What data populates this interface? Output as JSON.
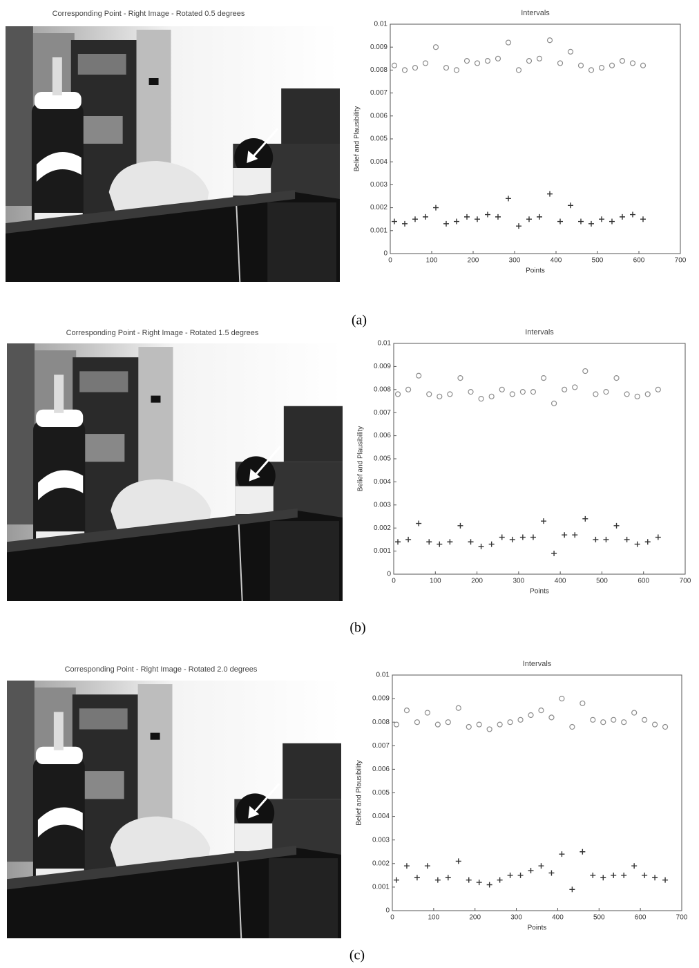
{
  "panels": [
    {
      "image_title": "Corresponding Point     - Right Image - Rotated 0.5 degrees",
      "caption": "(a)"
    },
    {
      "image_title": "Corresponding Point     - Right Image - Rotated 1.5 degrees",
      "caption": "(b)"
    },
    {
      "image_title": "Corresponding Point     - Right Image - Rotated 2.0 degrees",
      "caption": "(c)"
    }
  ],
  "chart_data": [
    {
      "type": "scatter",
      "title": "Intervals",
      "x_label": "Points",
      "y_label": "Belief and Plausibility",
      "xlim": [
        0,
        700
      ],
      "xticks": [
        0,
        100,
        200,
        300,
        400,
        500,
        600,
        700
      ],
      "ylim": [
        0,
        0.01
      ],
      "yticks": [
        0,
        0.001,
        0.002,
        0.003,
        0.004,
        0.005,
        0.006,
        0.007,
        0.008,
        0.009,
        0.01
      ],
      "series": [
        {
          "marker": "circle",
          "color": "#8c8c8c",
          "x": [
            10,
            35,
            60,
            85,
            110,
            135,
            160,
            185,
            210,
            235,
            260,
            285,
            310,
            335,
            360,
            385,
            410,
            435,
            460,
            485,
            510,
            535,
            560,
            585,
            610
          ],
          "values": [
            0.0082,
            0.008,
            0.0081,
            0.0083,
            0.009,
            0.0081,
            0.008,
            0.0084,
            0.0083,
            0.0084,
            0.0085,
            0.0092,
            0.008,
            0.0084,
            0.0085,
            0.0093,
            0.0083,
            0.0088,
            0.0082,
            0.008,
            0.0081,
            0.0082,
            0.0084,
            0.0083,
            0.0082
          ]
        },
        {
          "marker": "plus",
          "color": "#333333",
          "x": [
            10,
            35,
            60,
            85,
            110,
            135,
            160,
            185,
            210,
            235,
            260,
            285,
            310,
            335,
            360,
            385,
            410,
            435,
            460,
            485,
            510,
            535,
            560,
            585,
            610
          ],
          "values": [
            0.0014,
            0.0013,
            0.0015,
            0.0016,
            0.002,
            0.0013,
            0.0014,
            0.0016,
            0.0015,
            0.0017,
            0.0016,
            0.0024,
            0.0012,
            0.0015,
            0.0016,
            0.0026,
            0.0014,
            0.0021,
            0.0014,
            0.0013,
            0.0015,
            0.0014,
            0.0016,
            0.0017,
            0.0015
          ]
        }
      ]
    },
    {
      "type": "scatter",
      "title": "Intervals",
      "x_label": "Points",
      "y_label": "Belief and Plausibility",
      "xlim": [
        0,
        700
      ],
      "xticks": [
        0,
        100,
        200,
        300,
        400,
        500,
        600,
        700
      ],
      "ylim": [
        0,
        0.01
      ],
      "yticks": [
        0,
        0.001,
        0.002,
        0.003,
        0.004,
        0.005,
        0.006,
        0.007,
        0.008,
        0.009,
        0.01
      ],
      "series": [
        {
          "marker": "circle",
          "color": "#8c8c8c",
          "x": [
            10,
            35,
            60,
            85,
            110,
            135,
            160,
            185,
            210,
            235,
            260,
            285,
            310,
            335,
            360,
            385,
            410,
            435,
            460,
            485,
            510,
            535,
            560,
            585,
            610,
            635
          ],
          "values": [
            0.0078,
            0.008,
            0.0086,
            0.0078,
            0.0077,
            0.0078,
            0.0085,
            0.0079,
            0.0076,
            0.0077,
            0.008,
            0.0078,
            0.0079,
            0.0079,
            0.0085,
            0.0074,
            0.008,
            0.0081,
            0.0088,
            0.0078,
            0.0079,
            0.0085,
            0.0078,
            0.0077,
            0.0078,
            0.008
          ]
        },
        {
          "marker": "plus",
          "color": "#333333",
          "x": [
            10,
            35,
            60,
            85,
            110,
            135,
            160,
            185,
            210,
            235,
            260,
            285,
            310,
            335,
            360,
            385,
            410,
            435,
            460,
            485,
            510,
            535,
            560,
            585,
            610,
            635
          ],
          "values": [
            0.0014,
            0.0015,
            0.0022,
            0.0014,
            0.0013,
            0.0014,
            0.0021,
            0.0014,
            0.0012,
            0.0013,
            0.0016,
            0.0015,
            0.0016,
            0.0016,
            0.0023,
            0.0009,
            0.0017,
            0.0017,
            0.0024,
            0.0015,
            0.0015,
            0.0021,
            0.0015,
            0.0013,
            0.0014,
            0.0016
          ]
        }
      ]
    },
    {
      "type": "scatter",
      "title": "Intervals",
      "x_label": "Points",
      "y_label": "Belief and Plausibility",
      "xlim": [
        0,
        700
      ],
      "xticks": [
        0,
        100,
        200,
        300,
        400,
        500,
        600,
        700
      ],
      "ylim": [
        0,
        0.01
      ],
      "yticks": [
        0,
        0.001,
        0.002,
        0.003,
        0.004,
        0.005,
        0.006,
        0.007,
        0.008,
        0.009,
        0.01
      ],
      "series": [
        {
          "marker": "circle",
          "color": "#8c8c8c",
          "x": [
            10,
            35,
            60,
            85,
            110,
            135,
            160,
            185,
            210,
            235,
            260,
            285,
            310,
            335,
            360,
            385,
            410,
            435,
            460,
            485,
            510,
            535,
            560,
            585,
            610,
            635,
            660
          ],
          "values": [
            0.0079,
            0.0085,
            0.008,
            0.0084,
            0.0079,
            0.008,
            0.0086,
            0.0078,
            0.0079,
            0.0077,
            0.0079,
            0.008,
            0.0081,
            0.0083,
            0.0085,
            0.0082,
            0.009,
            0.0078,
            0.0088,
            0.0081,
            0.008,
            0.0081,
            0.008,
            0.0084,
            0.0081,
            0.0079,
            0.0078
          ]
        },
        {
          "marker": "plus",
          "color": "#333333",
          "x": [
            10,
            35,
            60,
            85,
            110,
            135,
            160,
            185,
            210,
            235,
            260,
            285,
            310,
            335,
            360,
            385,
            410,
            435,
            460,
            485,
            510,
            535,
            560,
            585,
            610,
            635,
            660
          ],
          "values": [
            0.0013,
            0.0019,
            0.0014,
            0.0019,
            0.0013,
            0.0014,
            0.0021,
            0.0013,
            0.0012,
            0.0011,
            0.0013,
            0.0015,
            0.0015,
            0.0017,
            0.0019,
            0.0016,
            0.0024,
            0.0009,
            0.0025,
            0.0015,
            0.0014,
            0.0015,
            0.0015,
            0.0019,
            0.0015,
            0.0014,
            0.0013
          ]
        }
      ]
    }
  ]
}
